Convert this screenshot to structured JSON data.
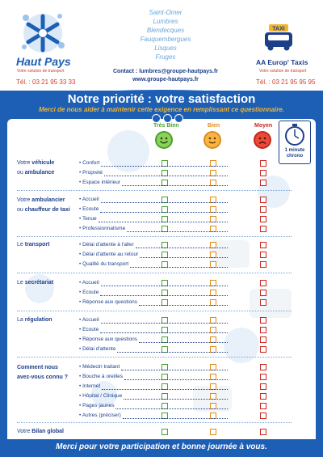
{
  "header": {
    "left_brand": "Haut Pays",
    "left_tagline": "Votre solution de transport",
    "left_phone": "Tél. : 03 21 95 33 33",
    "towns": [
      "Saint-Omer",
      "Lumbres",
      "Blendecques",
      "Fauquembergues",
      "Lisques",
      "Fruges"
    ],
    "contact": "Contact : lumbres@groupe-hautpays.fr",
    "website": "www.groupe-hautpays.fr",
    "right_badge": "TAXI",
    "right_brand": "AA Europ' Taxis",
    "right_tagline": "Votre solution de transport",
    "right_phone": "Tél. : 03 21 95 95 95"
  },
  "title": "Notre priorité : votre satisfaction",
  "subtitle": "Merci de nous aider à maintenir cette exigence en remplissant ce questionnaire.",
  "ratings": {
    "good": "Très Bien",
    "ok": "Bien",
    "bad": "Moyen",
    "chrono": "1 minute chrono"
  },
  "colors": {
    "frame": "#1d5fb5",
    "accent": "#f5b52a",
    "good": "#4aa02c",
    "ok": "#e08a1a",
    "bad": "#c8261e"
  },
  "sections": [
    {
      "label_pre": "Votre ",
      "label_bold": "véhicule",
      "label_mid": "ou ",
      "label_bold2": "ambulance",
      "items": [
        "Confort",
        "Propreté",
        "Espace intérieur"
      ]
    },
    {
      "label_pre": "Votre ",
      "label_bold": "ambulancier",
      "label_mid": "ou ",
      "label_bold2": "chauffeur de taxi",
      "items": [
        "Accueil",
        "Ecoute",
        "Tenue",
        "Professionnalisme"
      ]
    },
    {
      "label_pre": "Le ",
      "label_bold": "transport",
      "label_mid": "",
      "label_bold2": "",
      "items": [
        "Délai d'attente à l'aller",
        "Délai d'attente au retour",
        "Qualité du transport"
      ]
    },
    {
      "label_pre": "Le ",
      "label_bold": "secrétariat",
      "label_mid": "",
      "label_bold2": "",
      "items": [
        "Accueil",
        "Ecoute",
        "Réponse aux questions"
      ]
    },
    {
      "label_pre": "La ",
      "label_bold": "régulation",
      "label_mid": "",
      "label_bold2": "",
      "items": [
        "Accueil",
        "Ecoute",
        "Réponse aux questions",
        "Délai d'attente"
      ]
    },
    {
      "label_pre": "",
      "label_bold": "Comment nous",
      "label_mid": "",
      "label_bold2": "avez-vous connu ?",
      "items": [
        "Médecin traitant",
        "Bouche à oreilles",
        "Internet",
        "Hôpital / Clinique",
        "Pages jaunes",
        "Autres (préciser)"
      ]
    }
  ],
  "bilan": {
    "pre": "Votre ",
    "bold": "Bilan global"
  },
  "footer": "Merci pour votre participation et bonne journée à vous."
}
